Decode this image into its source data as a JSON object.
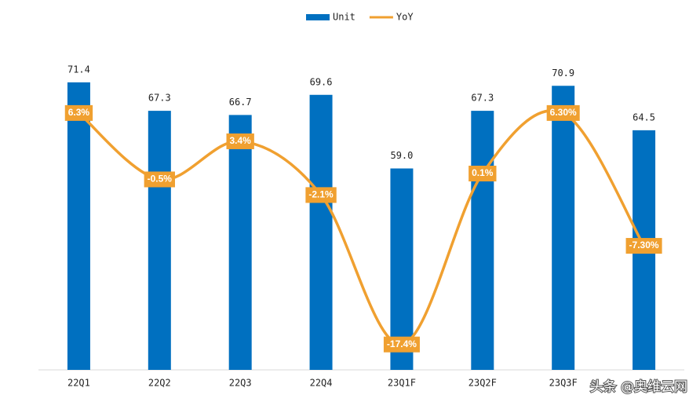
{
  "chart_data": {
    "type": "bar-line",
    "categories": [
      "22Q1",
      "22Q2",
      "22Q3",
      "22Q4",
      "23Q1F",
      "23Q2F",
      "23Q3F",
      null
    ],
    "series": [
      {
        "name": "Unit",
        "type": "bar",
        "color": "#0070c0",
        "values": [
          71.4,
          67.3,
          66.7,
          69.6,
          59.0,
          67.3,
          70.9,
          64.5
        ],
        "value_labels": [
          "71.4",
          "67.3",
          "66.7",
          "69.6",
          "59.0",
          "67.3",
          "70.9",
          "64.5"
        ]
      },
      {
        "name": "YoY",
        "type": "line",
        "axis": "y2",
        "color": "#f0a030",
        "smooth": true,
        "values": [
          6.3,
          -0.5,
          3.4,
          -2.1,
          -17.4,
          0.1,
          6.3,
          -7.3
        ],
        "value_labels": [
          "6.3%",
          "-0.5%",
          "3.4%",
          "-2.1%",
          "-17.4%",
          "0.1%",
          "6.30%",
          "-7.30%"
        ]
      }
    ],
    "ylim": [
      30,
      75
    ],
    "y2lim": [
      -20,
      12
    ],
    "legend": "top",
    "watermark": "头条 @奥维云网"
  }
}
